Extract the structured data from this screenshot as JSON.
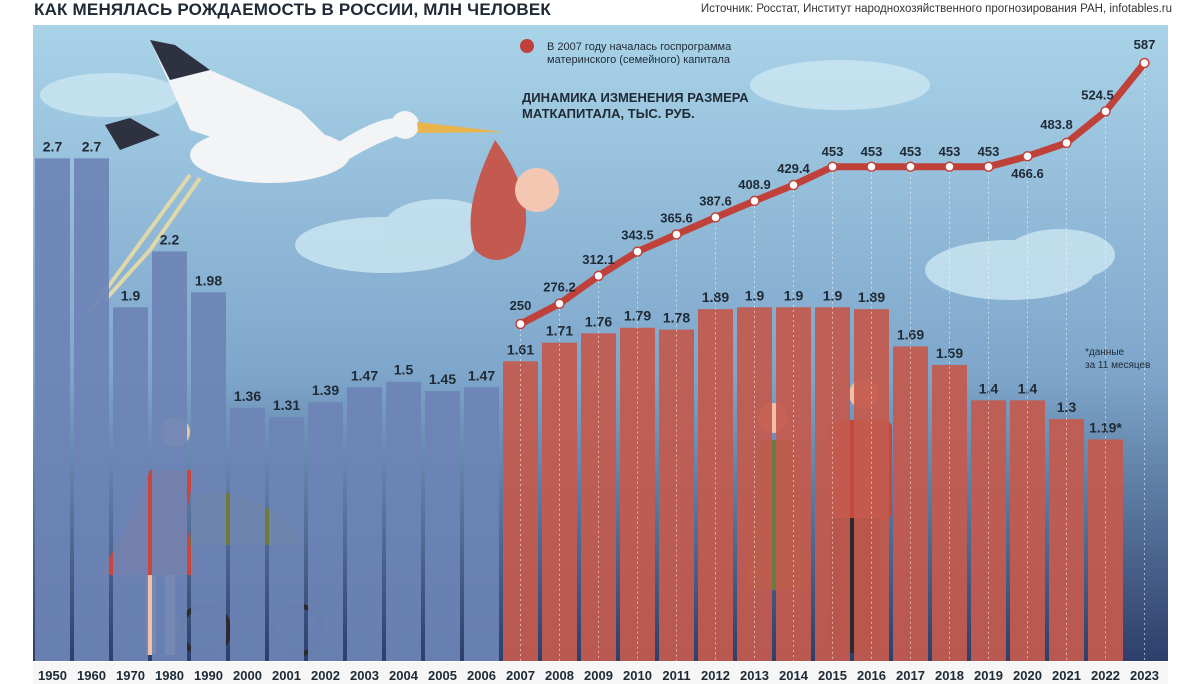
{
  "title": "КАК МЕНЯЛАСЬ РОЖДАЕМОСТЬ В РОССИИ, МЛН ЧЕЛОВЕК",
  "source": "Источник: Росстат, Институт народнохозяйственного прогнозирования РАН, infotables.ru",
  "colors": {
    "sky_top": "#a9d3e8",
    "sky_bottom": "#2d3e6b",
    "bar_blue": "#6d84b6",
    "bar_red": "#c45a4f",
    "line_red": "#c0413a",
    "axis_label": "#1f2a35"
  },
  "legend": {
    "marker_label": "В 2007 году началась госпрограмма материнского (семейного) капитала",
    "marker_line1": "В 2007 году началась госпрограмма",
    "marker_line2": "материнского (семейного) капитала"
  },
  "line_title_line1": "ДИНАМИКА ИЗМЕНЕНИЯ РАЗМЕРА",
  "line_title_line2": "МАТКАПИТАЛА, ТЫС. РУБ.",
  "footnote_line1": "*данные",
  "footnote_line2": "за 11 месяцев",
  "chart_data": [
    {
      "type": "bar",
      "title": "КАК МЕНЯЛАСЬ РОЖДАЕМОСТЬ В РОССИИ, МЛН ЧЕЛОВЕК",
      "categories": [
        "1950",
        "1960",
        "1970",
        "1980",
        "1990",
        "2000",
        "2001",
        "2002",
        "2003",
        "2004",
        "2005",
        "2006",
        "2007",
        "2008",
        "2009",
        "2010",
        "2011",
        "2012",
        "2013",
        "2014",
        "2015",
        "2016",
        "2017",
        "2018",
        "2019",
        "2020",
        "2021",
        "2022",
        "2023"
      ],
      "values": [
        2.7,
        2.7,
        1.9,
        2.2,
        1.98,
        1.36,
        1.31,
        1.39,
        1.47,
        1.5,
        1.45,
        1.47,
        1.61,
        1.71,
        1.76,
        1.79,
        1.78,
        1.89,
        1.9,
        1.9,
        1.9,
        1.89,
        1.69,
        1.59,
        1.4,
        1.4,
        1.3,
        1.19,
        null
      ],
      "value_labels": [
        "2.7",
        "2.7",
        "1.9",
        "2.2",
        "1.98",
        "1.36",
        "1.31",
        "1.39",
        "1.47",
        "1.5",
        "1.45",
        "1.47",
        "1.61",
        "1.71",
        "1.76",
        "1.79",
        "1.78",
        "1.89",
        "1.9",
        "1.9",
        "1.9",
        "1.89",
        "1.69",
        "1.59",
        "1.4",
        "1.4",
        "1.3",
        "1.19*",
        ""
      ],
      "ylim": [
        0,
        3.4
      ],
      "grid": false
    },
    {
      "type": "line",
      "title": "ДИНАМИКА ИЗМЕНЕНИЯ РАЗМЕРА МАТКАПИТАЛА, ТЫС. РУБ.",
      "x": [
        "2007",
        "2008",
        "2009",
        "2010",
        "2011",
        "2012",
        "2013",
        "2014",
        "2015",
        "2016",
        "2017",
        "2018",
        "2019",
        "2020",
        "2021",
        "2022",
        "2023"
      ],
      "values": [
        250,
        276.2,
        312.1,
        343.5,
        365.6,
        387.6,
        408.9,
        429.4,
        453,
        453,
        453,
        453,
        453,
        466.6,
        483.8,
        524.5,
        587
      ],
      "value_labels": [
        "250",
        "276.2",
        "312.1",
        "343.5",
        "365.6",
        "387.6",
        "408.9",
        "429.4",
        "453",
        "453",
        "453",
        "453",
        "453",
        "466.6",
        "483.8",
        "524.5",
        "587"
      ],
      "ylim": [
        200,
        600
      ]
    }
  ]
}
